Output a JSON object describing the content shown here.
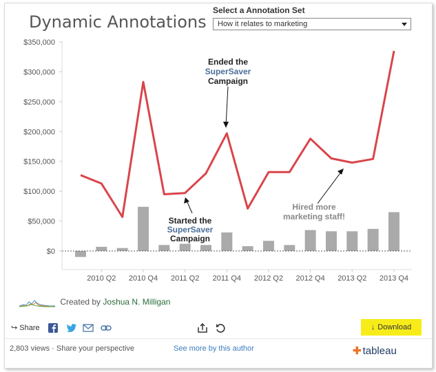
{
  "header": {
    "title": "Dynamic Annotations"
  },
  "annotation_select": {
    "label": "Select a Annotation Set",
    "value": "How it relates to marketing"
  },
  "chart_data": [
    {
      "type": "line",
      "series": [
        {
          "values": [
            127000,
            113000,
            57000,
            283000,
            95000,
            97000,
            130000,
            197000,
            71000,
            132000,
            132000,
            188000,
            155000,
            148000,
            154000,
            335000
          ]
        }
      ],
      "ylim": [
        -15000,
        350000
      ],
      "yticks": [
        "$0",
        "$50,000",
        "$100,000",
        "$150,000",
        "$200,000",
        "$250,000",
        "$300,000",
        "$350,000"
      ],
      "xticks": [
        "2010 Q2",
        "2010 Q4",
        "2011 Q2",
        "2011 Q4",
        "2012 Q2",
        "2012 Q4",
        "2013 Q2",
        "2013 Q4"
      ],
      "color": "#d9444a"
    },
    {
      "type": "bar",
      "values": [
        -10000,
        7000,
        5000,
        74000,
        10000,
        12000,
        10000,
        31000,
        8000,
        17000,
        10000,
        35000,
        33000,
        33000,
        37000,
        65000
      ],
      "color": "#aaaaaa"
    }
  ],
  "annotations": [
    {
      "line1": "Ended the",
      "line2": "SuperSaver",
      "line3": "Campaign"
    },
    {
      "line1": "Started the",
      "line2": "SuperSaver",
      "line3": "Campaign"
    },
    {
      "line1": "Hired more",
      "line2": "marketing staff!"
    }
  ],
  "credit": {
    "prefix": "Created by",
    "author": "Joshua N. Milligan"
  },
  "toolbar": {
    "share_label": "Share",
    "download_label": "Download"
  },
  "footer": {
    "views": "2,803 views",
    "separator": "·",
    "share_perspective": "Share your perspective",
    "see_more": "See more by this author",
    "logo": "tableau"
  }
}
